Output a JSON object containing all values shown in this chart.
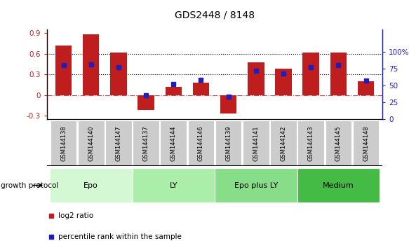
{
  "title": "GDS2448 / 8148",
  "samples": [
    "GSM144138",
    "GSM144140",
    "GSM144147",
    "GSM144137",
    "GSM144144",
    "GSM144146",
    "GSM144139",
    "GSM144141",
    "GSM144142",
    "GSM144143",
    "GSM144145",
    "GSM144148"
  ],
  "log2_ratio": [
    0.72,
    0.88,
    0.62,
    -0.22,
    0.12,
    0.18,
    -0.27,
    0.48,
    0.38,
    0.62,
    0.62,
    0.2
  ],
  "pct_rank": [
    80,
    82,
    77,
    35,
    52,
    58,
    33,
    72,
    68,
    77,
    80,
    57
  ],
  "bar_color": "#be1e1e",
  "dot_color": "#1e1ebe",
  "ylim": [
    -0.35,
    0.95
  ],
  "right_ylim": [
    0,
    133.33
  ],
  "right_yticks": [
    0,
    25,
    50,
    75,
    100
  ],
  "right_yticklabels": [
    "0",
    "25",
    "50",
    "75",
    "100%"
  ],
  "left_yticks": [
    -0.3,
    0.0,
    0.3,
    0.6,
    0.9
  ],
  "left_yticklabels": [
    "-0.3",
    "0",
    "0.3",
    "0.6",
    "0.9"
  ],
  "hlines": [
    0.3,
    0.6
  ],
  "zero_line": 0.0,
  "groups": [
    {
      "label": "Epo",
      "start": 0,
      "end": 3,
      "color": "#d4f7d4"
    },
    {
      "label": "LY",
      "start": 3,
      "end": 6,
      "color": "#aaeeaa"
    },
    {
      "label": "Epo plus LY",
      "start": 6,
      "end": 9,
      "color": "#88dd88"
    },
    {
      "label": "Medium",
      "start": 9,
      "end": 12,
      "color": "#44bb44"
    }
  ],
  "growth_label": "growth protocol",
  "legend_bar_label": "log2 ratio",
  "legend_dot_label": "percentile rank within the sample",
  "bg_color": "#ffffff",
  "tick_label_bg": "#cccccc"
}
